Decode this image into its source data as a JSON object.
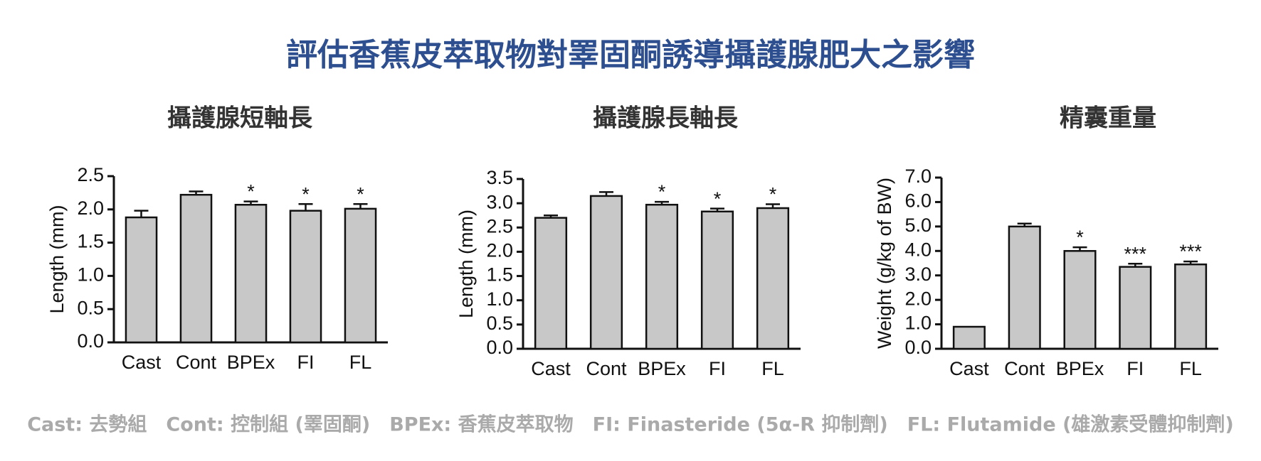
{
  "title": "評估香蕉皮萃取物對睪固酮誘導攝護腺肥大之影響",
  "footnote": "Cast: 去勢組　Cont: 控制組 (睪固酮)　BPEx: 香蕉皮萃取物　FI: Finasteride (5α-R 抑制劑)　FL: Flutamide (雄激素受體抑制劑)",
  "chart_data": [
    {
      "type": "bar",
      "title": "攝護腺短軸長",
      "ylabel": "Length (mm)",
      "categories": [
        "Cast",
        "Cont",
        "BPEx",
        "FI",
        "FL"
      ],
      "values": [
        1.88,
        2.22,
        2.07,
        1.98,
        2.01
      ],
      "errors": [
        0.1,
        0.05,
        0.05,
        0.1,
        0.07
      ],
      "annotations": [
        null,
        null,
        "*",
        "*",
        "*"
      ],
      "color": "#c8c8c8",
      "ylim": [
        0,
        2.5
      ],
      "yticks": [
        {
          "value": 0,
          "label": "0.0"
        },
        0.5,
        {
          "value": 1,
          "label": "1.0"
        },
        1.5,
        {
          "value": 2,
          "label": "2.0"
        },
        2.5
      ]
    },
    {
      "type": "bar",
      "title": "攝護腺長軸長",
      "ylabel": "Length (mm)",
      "categories": [
        "Cast",
        "Cont",
        "BPEx",
        "FI",
        "FL"
      ],
      "values": [
        2.7,
        3.15,
        2.97,
        2.83,
        2.9
      ],
      "errors": [
        0.05,
        0.08,
        0.06,
        0.06,
        0.08
      ],
      "annotations": [
        null,
        null,
        "*",
        "*",
        "*"
      ],
      "color": "#c8c8c8",
      "ylim": [
        0,
        3.5
      ],
      "yticks": [
        {
          "value": 0,
          "label": "0.0"
        },
        0.5,
        {
          "value": 1,
          "label": "1.0"
        },
        1.5,
        {
          "value": 2,
          "label": "2.0"
        },
        2.5,
        {
          "value": 3,
          "label": "3.0"
        },
        3.5
      ]
    },
    {
      "type": "bar",
      "title": "精囊重量",
      "ylabel": "Weight (g/kg of BW)",
      "categories": [
        "Cast",
        "Cont",
        "BPEx",
        "FI",
        "FL"
      ],
      "values": [
        0.9,
        5.0,
        4.0,
        3.35,
        3.45
      ],
      "errors": [
        null,
        0.12,
        0.15,
        0.13,
        0.12
      ],
      "annotations": [
        null,
        null,
        "*",
        "***",
        "***"
      ],
      "color": "#c8c8c8",
      "ylim": [
        0,
        7
      ],
      "yticks": [
        {
          "value": 0,
          "label": "0.0"
        },
        {
          "value": 1,
          "label": "1.0"
        },
        {
          "value": 2,
          "label": "2.0"
        },
        {
          "value": 3,
          "label": "3.0"
        },
        {
          "value": 4,
          "label": "4.0"
        },
        {
          "value": 5,
          "label": "5.0"
        },
        {
          "value": 6,
          "label": "6.0"
        },
        {
          "value": 7,
          "label": "7.0"
        }
      ]
    }
  ]
}
